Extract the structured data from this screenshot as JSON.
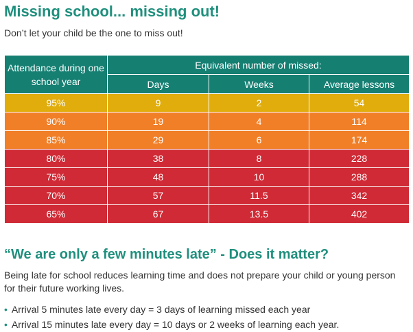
{
  "title": "Missing school... missing out!",
  "subtitle": "Don’t let your child be the one to miss out!",
  "table": {
    "row_header": "Attendance during one school year",
    "group_header": "Equivalent number of missed:",
    "columns": [
      "Days",
      "Weeks",
      "Average lessons"
    ],
    "rows": [
      {
        "attendance": "95%",
        "days": "9",
        "weeks": "2",
        "lessons": "54",
        "color": "#e0ad0c"
      },
      {
        "attendance": "90%",
        "days": "19",
        "weeks": "4",
        "lessons": "114",
        "color": "#f07f28"
      },
      {
        "attendance": "85%",
        "days": "29",
        "weeks": "6",
        "lessons": "174",
        "color": "#f07f28"
      },
      {
        "attendance": "80%",
        "days": "38",
        "weeks": "8",
        "lessons": "228",
        "color": "#cf2a35"
      },
      {
        "attendance": "75%",
        "days": "48",
        "weeks": "10",
        "lessons": "288",
        "color": "#cf2a35"
      },
      {
        "attendance": "70%",
        "days": "57",
        "weeks": "11.5",
        "lessons": "342",
        "color": "#cf2a35"
      },
      {
        "attendance": "65%",
        "days": "67",
        "weeks": "13.5",
        "lessons": "402",
        "color": "#cf2a35"
      }
    ]
  },
  "section": {
    "heading": "“We are only a few minutes late” - Does it matter?",
    "paragraph": "Being late for school reduces learning time and does not prepare your child or young person for their future working lives.",
    "bullets": [
      "Arrival 5 minutes late every day = 3 days of learning missed each year",
      "Arrival 15 minutes late every day = 10 days or 2 weeks of learning each year."
    ]
  },
  "colors": {
    "heading_teal": "#1f8f7d",
    "header_bg": "#157f72",
    "yellow": "#e0ad0c",
    "orange": "#f07f28",
    "red": "#cf2a35"
  }
}
